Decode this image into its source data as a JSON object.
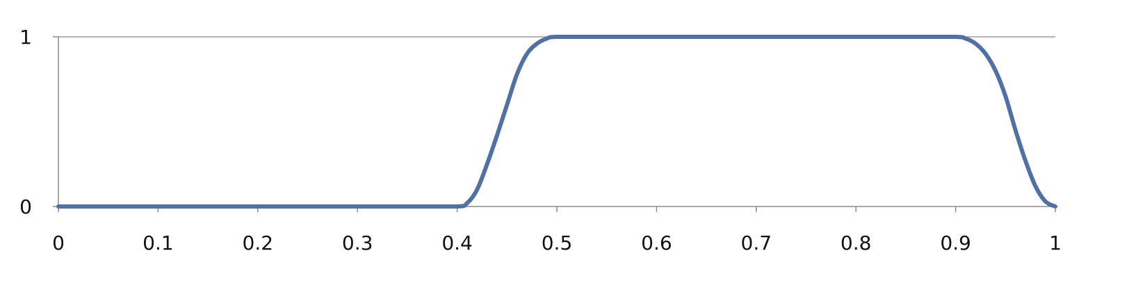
{
  "chart_data": {
    "type": "line",
    "title": "",
    "xlabel": "",
    "ylabel": "",
    "xlim": [
      0,
      1
    ],
    "ylim": [
      0,
      1
    ],
    "x_ticks": [
      0,
      0.1,
      0.2,
      0.3,
      0.4,
      0.5,
      0.6,
      0.7,
      0.8,
      0.9,
      1
    ],
    "x_tick_labels": [
      "0",
      "0.1",
      "0.2",
      "0.3",
      "0.4",
      "0.5",
      "0.6",
      "0.7",
      "0.8",
      "0.9",
      "1"
    ],
    "y_ticks": [
      0,
      1
    ],
    "y_tick_labels": [
      "0",
      "1"
    ],
    "grid": {
      "horizontal": true,
      "vertical": false
    },
    "legend": "none",
    "series": [
      {
        "color": "#4f71a6",
        "x": [
          0,
          0.05,
          0.1,
          0.15,
          0.2,
          0.25,
          0.3,
          0.35,
          0.4,
          0.41,
          0.42,
          0.43,
          0.44,
          0.45,
          0.46,
          0.47,
          0.48,
          0.49,
          0.5,
          0.55,
          0.6,
          0.65,
          0.7,
          0.75,
          0.8,
          0.85,
          0.9,
          0.91,
          0.92,
          0.93,
          0.94,
          0.95,
          0.96,
          0.97,
          0.98,
          0.99,
          1
        ],
        "y": [
          0,
          0,
          0,
          0,
          0,
          0,
          0,
          0,
          0,
          0.02,
          0.1,
          0.25,
          0.42,
          0.6,
          0.78,
          0.9,
          0.96,
          0.99,
          1,
          1,
          1,
          1,
          1,
          1,
          1,
          1,
          1,
          0.99,
          0.96,
          0.9,
          0.8,
          0.65,
          0.45,
          0.27,
          0.12,
          0.03,
          0
        ]
      }
    ]
  }
}
